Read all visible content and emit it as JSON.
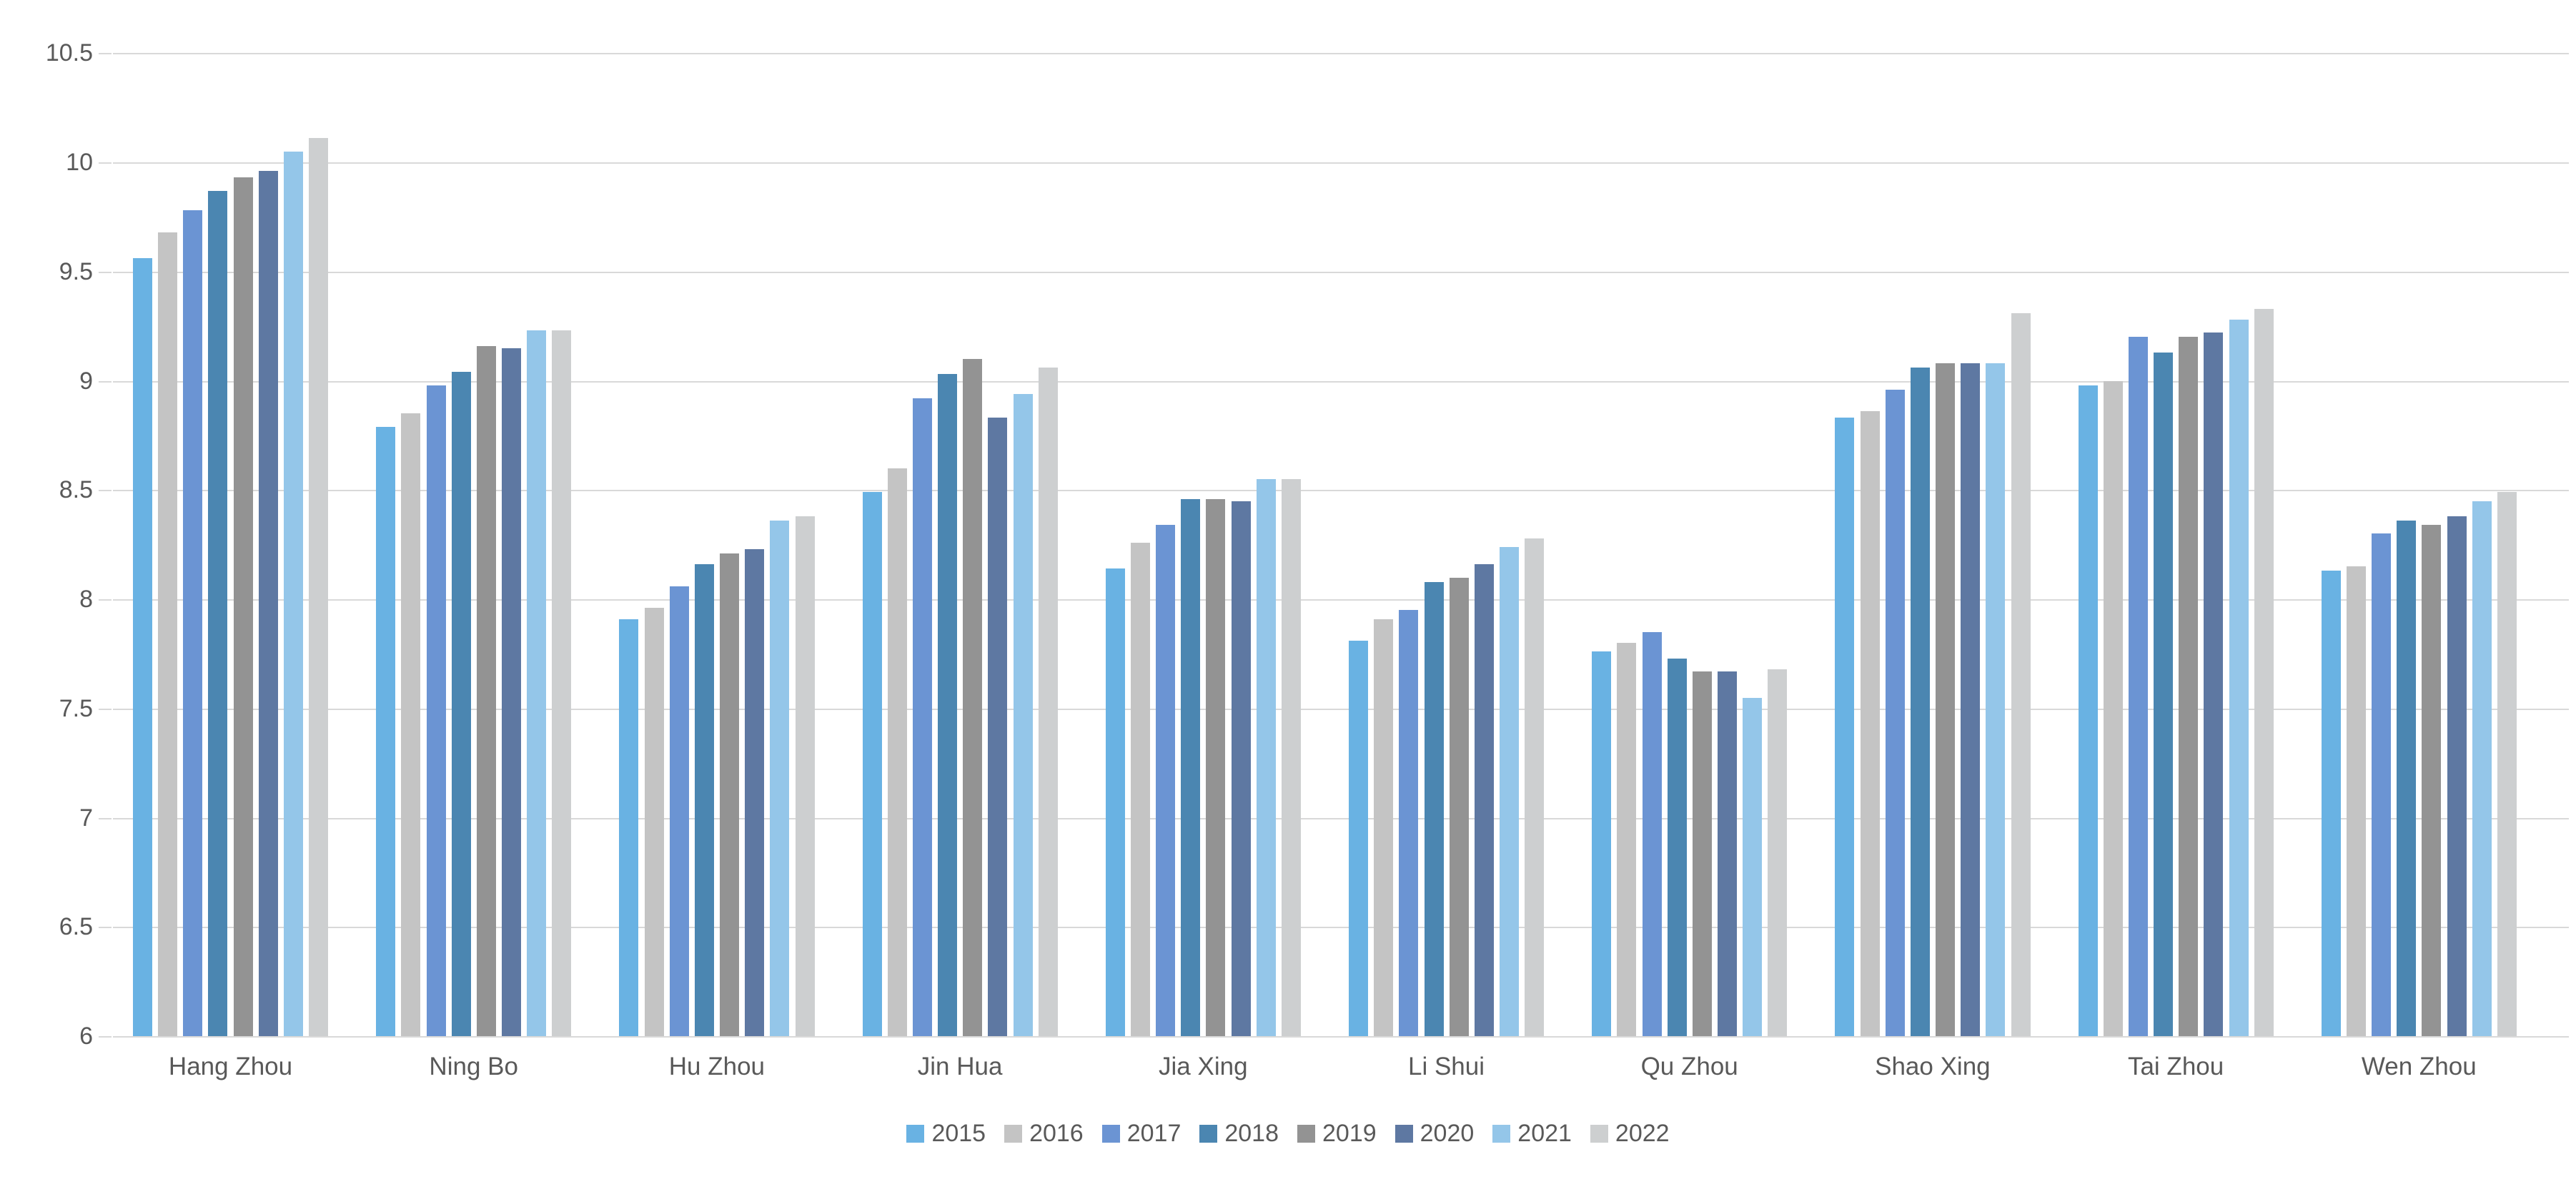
{
  "chart_data": {
    "type": "bar",
    "title": "",
    "xlabel": "",
    "ylabel": "",
    "categories": [
      "Hang Zhou",
      "Ning Bo",
      "Hu Zhou",
      "Jin Hua",
      "Jia Xing",
      "Li Shui",
      "Qu Zhou",
      "Shao Xing",
      "Tai Zhou",
      "Wen Zhou"
    ],
    "series": [
      {
        "name": "2015",
        "color": "#69B2E3",
        "values": [
          9.56,
          8.79,
          7.91,
          8.49,
          8.14,
          7.81,
          7.76,
          8.83,
          8.98,
          8.13
        ]
      },
      {
        "name": "2016",
        "color": "#C4C4C4",
        "values": [
          9.68,
          8.85,
          7.96,
          8.6,
          8.26,
          7.91,
          7.8,
          8.86,
          9.0,
          8.15
        ]
      },
      {
        "name": "2017",
        "color": "#6B94D3",
        "values": [
          9.78,
          8.98,
          8.06,
          8.92,
          8.34,
          7.95,
          7.85,
          8.96,
          9.2,
          8.3
        ]
      },
      {
        "name": "2018",
        "color": "#4B86B1",
        "values": [
          9.87,
          9.04,
          8.16,
          9.03,
          8.46,
          8.08,
          7.73,
          9.06,
          9.13,
          8.36
        ]
      },
      {
        "name": "2019",
        "color": "#939393",
        "values": [
          9.93,
          9.16,
          8.21,
          9.1,
          8.46,
          8.1,
          7.67,
          9.08,
          9.2,
          8.34
        ]
      },
      {
        "name": "2020",
        "color": "#5E78A2",
        "values": [
          9.96,
          9.15,
          8.23,
          8.83,
          8.45,
          8.16,
          7.67,
          9.08,
          9.22,
          8.38
        ]
      },
      {
        "name": "2021",
        "color": "#94C6E9",
        "values": [
          10.05,
          9.23,
          8.36,
          8.94,
          8.55,
          8.24,
          7.55,
          9.08,
          9.28,
          8.45
        ]
      },
      {
        "name": "2022",
        "color": "#CDCFD0",
        "values": [
          10.11,
          9.23,
          8.38,
          9.06,
          8.55,
          8.28,
          7.68,
          9.31,
          9.33,
          8.49
        ]
      }
    ],
    "ylim": [
      6,
      10.5
    ],
    "y_tick_step": 0.5,
    "y_tick_labels": [
      "6",
      "6.5",
      "7",
      "7.5",
      "8",
      "8.5",
      "9",
      "9.5",
      "10",
      "10.5"
    ],
    "grid": true,
    "legend_position": "bottom"
  },
  "style": {
    "grid_color": "#d9d9d9",
    "axis_text_color": "#595959",
    "background": "#ffffff"
  }
}
